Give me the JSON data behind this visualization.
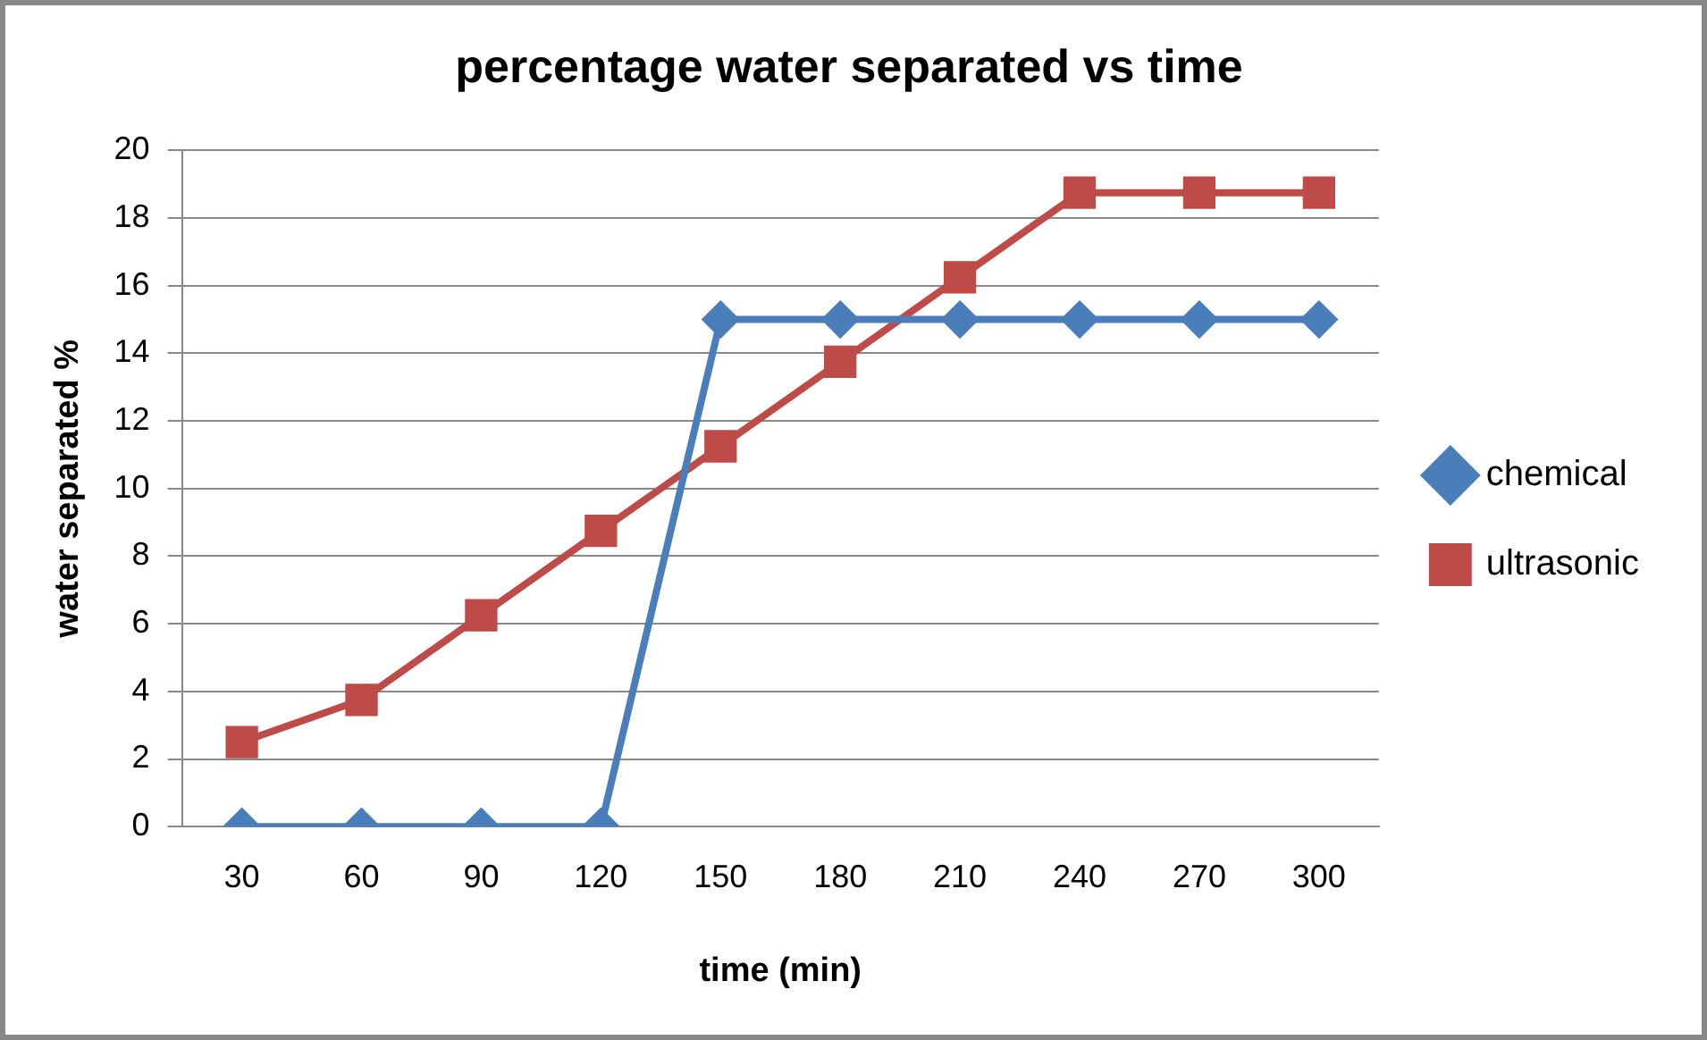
{
  "chart_data": {
    "type": "line",
    "title": "percentage water separated vs time",
    "xlabel": "time (min)",
    "ylabel": "water separated %",
    "categories": [
      "30",
      "60",
      "90",
      "120",
      "150",
      "180",
      "210",
      "240",
      "270",
      "300"
    ],
    "series": [
      {
        "name": "chemical",
        "color": "#4a7ebb",
        "marker": "diamond",
        "values": [
          0,
          0,
          0,
          0,
          15,
          15,
          15,
          15,
          15,
          15
        ]
      },
      {
        "name": "ultrasonic",
        "color": "#be4b48",
        "marker": "square",
        "values": [
          2.5,
          3.75,
          6.25,
          8.75,
          11.25,
          13.75,
          16.25,
          18.75,
          18.75,
          18.75
        ]
      }
    ],
    "ylim": [
      0,
      20
    ],
    "yticks": [
      0,
      2,
      4,
      6,
      8,
      10,
      12,
      14,
      16,
      18,
      20
    ],
    "grid": "y",
    "legend": "right",
    "line_style": "solid"
  }
}
